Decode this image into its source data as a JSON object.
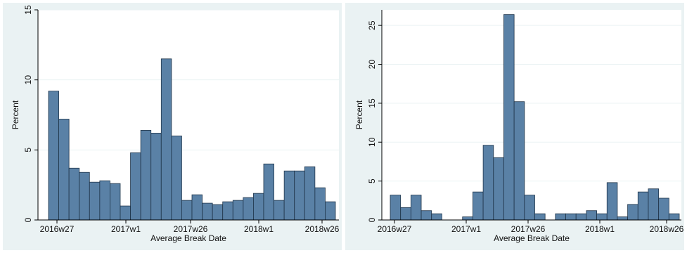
{
  "colors": {
    "bar_fill": "#5a81a6",
    "bar_stroke": "#1f3449",
    "plot_bg": "#ffffff",
    "panel_bg": "#eaf2f3",
    "grid": "#eaf2f3"
  },
  "chart_data": [
    {
      "type": "bar",
      "xlabel": "Average Break Date",
      "ylabel": "Percent",
      "ylim": [
        0,
        15
      ],
      "yticks": [
        0,
        5,
        10,
        15
      ],
      "xticks": [
        "2016w27",
        "2017w1",
        "2017w26",
        "2018w1",
        "2018w26"
      ],
      "grid": true,
      "values": [
        9.2,
        7.2,
        3.7,
        3.4,
        2.7,
        2.8,
        2.6,
        1.0,
        4.8,
        6.4,
        6.2,
        11.5,
        6.0,
        1.4,
        1.8,
        1.2,
        1.1,
        1.3,
        1.4,
        1.6,
        1.9,
        4.0,
        1.4,
        3.5,
        3.5,
        3.8,
        2.3,
        1.3
      ]
    },
    {
      "type": "bar",
      "xlabel": "Average Break Date",
      "ylabel": "Percent",
      "ylim": [
        0,
        27
      ],
      "yticks": [
        0,
        5,
        10,
        15,
        20,
        25
      ],
      "xticks": [
        "2016w27",
        "2017w1",
        "2017w26",
        "2018w1",
        "2018w26"
      ],
      "grid": true,
      "values": [
        3.2,
        1.6,
        3.2,
        1.2,
        0.8,
        0,
        0,
        0.4,
        3.6,
        9.6,
        8.0,
        26.4,
        15.2,
        3.2,
        0.8,
        0,
        0.8,
        0.8,
        0.8,
        1.2,
        0.8,
        4.8,
        0.4,
        2.0,
        3.6,
        4.0,
        2.8,
        0.8
      ]
    }
  ]
}
